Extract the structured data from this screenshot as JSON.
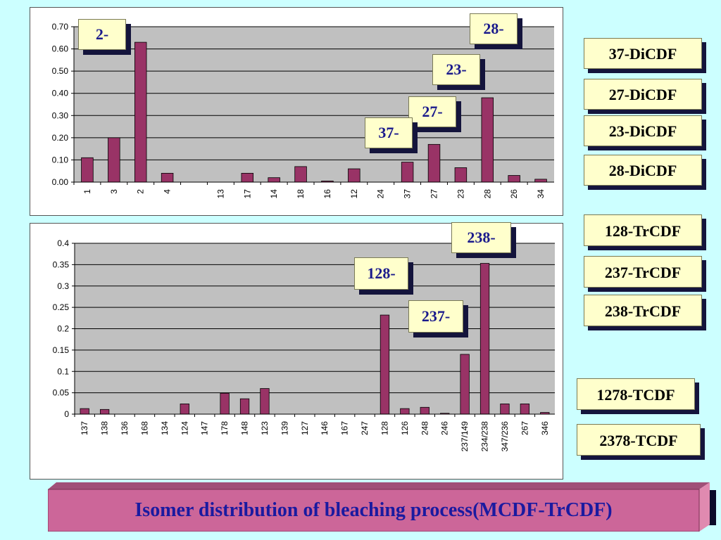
{
  "colors": {
    "bar": "#993366",
    "plot_bg": "#c0c0c0",
    "background": "#ccffff",
    "callout_bg": "#ffffcc",
    "callout_text": "#1a1a8c",
    "shadow": "#14143c",
    "banner_bg": "#cc6699"
  },
  "chart_data": [
    {
      "type": "bar",
      "categories": [
        "1",
        "3",
        "2",
        "4",
        "",
        "13",
        "17",
        "14",
        "18",
        "16",
        "12",
        "24",
        "37",
        "27",
        "23",
        "28",
        "26",
        "34"
      ],
      "values": [
        0.11,
        0.2,
        0.63,
        0.04,
        0,
        0,
        0.04,
        0.02,
        0.07,
        0.005,
        0.06,
        0,
        0.09,
        0.17,
        0.065,
        0.38,
        0.03,
        0.013
      ],
      "ylim": [
        0,
        0.7
      ],
      "yticks": [
        0,
        0.1,
        0.2,
        0.3,
        0.4,
        0.5,
        0.6,
        0.7
      ],
      "ytick_labels": [
        "0.00",
        "0.10",
        "0.20",
        "0.30",
        "0.40",
        "0.50",
        "0.60",
        "0.70"
      ],
      "grid": true,
      "annotations": [
        "2-",
        "28-",
        "23-",
        "27-",
        "37-"
      ]
    },
    {
      "type": "bar",
      "categories": [
        "137",
        "138",
        "136",
        "168",
        "134",
        "124",
        "147",
        "178",
        "148",
        "123",
        "139",
        "127",
        "146",
        "167",
        "247",
        "128",
        "126",
        "248",
        "246",
        "237/149",
        "234/238",
        "347/236",
        "267",
        "346"
      ],
      "values": [
        0.013,
        0.011,
        0,
        0,
        0,
        0.024,
        0,
        0.049,
        0.036,
        0.06,
        0,
        0,
        0,
        0,
        0,
        0.232,
        0.013,
        0.016,
        0.002,
        0.14,
        0.353,
        0.024,
        0.024,
        0.004
      ],
      "ylim": [
        0,
        0.4
      ],
      "yticks": [
        0,
        0.05,
        0.1,
        0.15,
        0.2,
        0.25,
        0.3,
        0.35,
        0.4
      ],
      "ytick_labels": [
        "0",
        "0.05",
        "0.1",
        "0.15",
        "0.2",
        "0.25",
        "0.3",
        "0.35",
        "0.4"
      ],
      "grid": true,
      "annotations": [
        "238-",
        "128-",
        "237-"
      ]
    }
  ],
  "legend": [
    "37-DiCDF",
    "27-DiCDF",
    "23-DiCDF",
    "28-DiCDF",
    "128-TrCDF",
    "237-TrCDF",
    "238-TrCDF",
    "1278-TCDF",
    "2378-TCDF"
  ],
  "title": "Isomer distribution of bleaching process(MCDF-TrCDF)"
}
